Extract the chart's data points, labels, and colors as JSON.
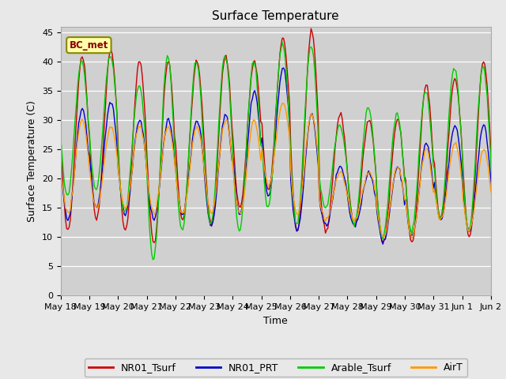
{
  "title": "Surface Temperature",
  "ylabel": "Surface Temperature (C)",
  "xlabel": "Time",
  "annotation": "BC_met",
  "yticks": [
    0,
    5,
    10,
    15,
    20,
    25,
    30,
    35,
    40,
    45
  ],
  "ylim": [
    0,
    46
  ],
  "fig_facecolor": "#e8e8e8",
  "plot_facecolor": "#d0d0d0",
  "legend_entries": [
    "NR01_Tsurf",
    "NR01_PRT",
    "Arable_Tsurf",
    "AirT"
  ],
  "line_colors": [
    "#cc0000",
    "#0000cc",
    "#00cc00",
    "#ff9900"
  ],
  "xtick_labels": [
    "May 18",
    "May 19",
    "May 20",
    "May 21",
    "May 22",
    "May 23",
    "May 24",
    "May 25",
    "May 26",
    "May 27",
    "May 28",
    "May 29",
    "May 30",
    "May 31",
    "Jun 1",
    "Jun 2"
  ],
  "num_days": 16,
  "title_fontsize": 11,
  "label_fontsize": 9,
  "tick_fontsize": 8,
  "legend_fontsize": 9
}
